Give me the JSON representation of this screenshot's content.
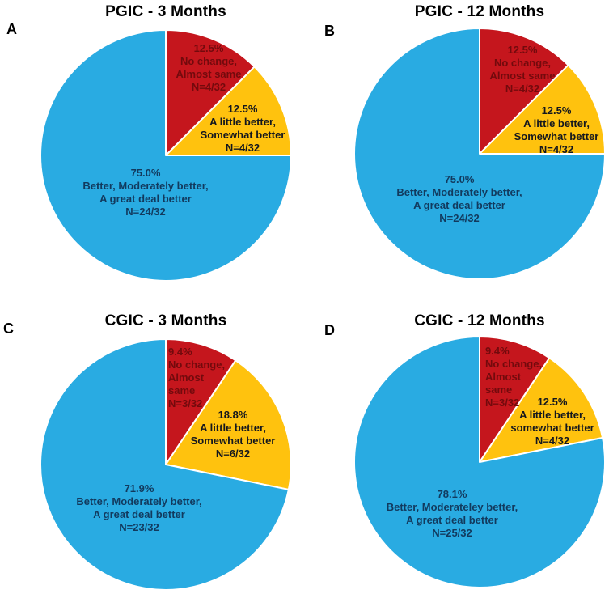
{
  "colors": {
    "red": "#C5161D",
    "yellow": "#FFC20E",
    "blue": "#29ABE2",
    "separator": "#FFFFFF",
    "title_text": "#000000",
    "red_label_text": "#730A0D",
    "yellow_label_text": "#14171E",
    "blue_label_text": "#123A5E"
  },
  "chart_data": [
    {
      "id": "A",
      "type": "pie",
      "letter": "A",
      "title": "PGIC - 3 Months",
      "start_angle": "12-oclock",
      "direction": "clockwise",
      "slices": [
        {
          "category": "No change, Almost same",
          "percent": 12.5,
          "count": "N=4/32",
          "color_key": "red",
          "label_lines": [
            "12.5%",
            "No change,",
            "Almost same",
            "N=4/32"
          ]
        },
        {
          "category": "A little better, Somewhat better",
          "percent": 12.5,
          "count": "N=4/32",
          "color_key": "yellow",
          "label_lines": [
            "12.5%",
            "A little better,",
            "Somewhat better",
            "N=4/32"
          ]
        },
        {
          "category": "Better, Moderately better, A great deal better",
          "percent": 75.0,
          "count": "N=24/32",
          "color_key": "blue",
          "label_lines": [
            "75.0%",
            "Better, Moderately better,",
            "A great deal better",
            "N=24/32"
          ]
        }
      ]
    },
    {
      "id": "B",
      "type": "pie",
      "letter": "B",
      "title": "PGIC - 12 Months",
      "start_angle": "12-oclock",
      "direction": "clockwise",
      "slices": [
        {
          "category": "No change, Almost same",
          "percent": 12.5,
          "count": "N=4/32",
          "color_key": "red",
          "label_lines": [
            "12.5%",
            "No change,",
            "Almost same",
            "N=4/32"
          ]
        },
        {
          "category": "A little better, Somewhat better",
          "percent": 12.5,
          "count": "N=4/32",
          "color_key": "yellow",
          "label_lines": [
            "12.5%",
            "A little better,",
            "Somewhat better",
            "N=4/32"
          ]
        },
        {
          "category": "Better, Moderately better, A great deal better",
          "percent": 75.0,
          "count": "N=24/32",
          "color_key": "blue",
          "label_lines": [
            "75.0%",
            "Better, Moderately better,",
            "A great deal better",
            "N=24/32"
          ]
        }
      ]
    },
    {
      "id": "C",
      "type": "pie",
      "letter": "C",
      "title": "CGIC - 3 Months",
      "start_angle": "12-oclock",
      "direction": "clockwise",
      "slices": [
        {
          "category": "No change, Almost same",
          "percent": 9.4,
          "count": "N=3/32",
          "color_key": "red",
          "label_lines": [
            "9.4%",
            "No change,",
            "Almost",
            "same",
            "N=3/32"
          ]
        },
        {
          "category": "A little better, Somewhat better",
          "percent": 18.8,
          "count": "N=6/32",
          "color_key": "yellow",
          "label_lines": [
            "18.8%",
            "A little better,",
            "Somewhat better",
            "N=6/32"
          ]
        },
        {
          "category": "Better, Moderately better, A great deal better",
          "percent": 71.9,
          "count": "N=23/32",
          "color_key": "blue",
          "label_lines": [
            "71.9%",
            "Better, Moderately better,",
            "A great deal better",
            "N=23/32"
          ]
        }
      ]
    },
    {
      "id": "D",
      "type": "pie",
      "letter": "D",
      "title": "CGIC - 12 Months",
      "start_angle": "12-oclock",
      "direction": "clockwise",
      "slices": [
        {
          "category": "No change, Almost same",
          "percent": 9.4,
          "count": "N=3/32",
          "color_key": "red",
          "label_lines": [
            "9.4%",
            "No change,",
            "Almost",
            "same",
            "N=3/32"
          ]
        },
        {
          "category": "A little better, somewhat better",
          "percent": 12.5,
          "count": "N=4/32",
          "color_key": "yellow",
          "label_lines": [
            "12.5%",
            "A little better,",
            "somewhat better",
            "N=4/32"
          ]
        },
        {
          "category": "Better, Moderateley better, A great deal better",
          "percent": 78.1,
          "count": "N=25/32",
          "color_key": "blue",
          "label_lines": [
            "78.1%",
            "Better, Moderateley better,",
            "A great deal better",
            "N=25/32"
          ]
        }
      ]
    }
  ]
}
